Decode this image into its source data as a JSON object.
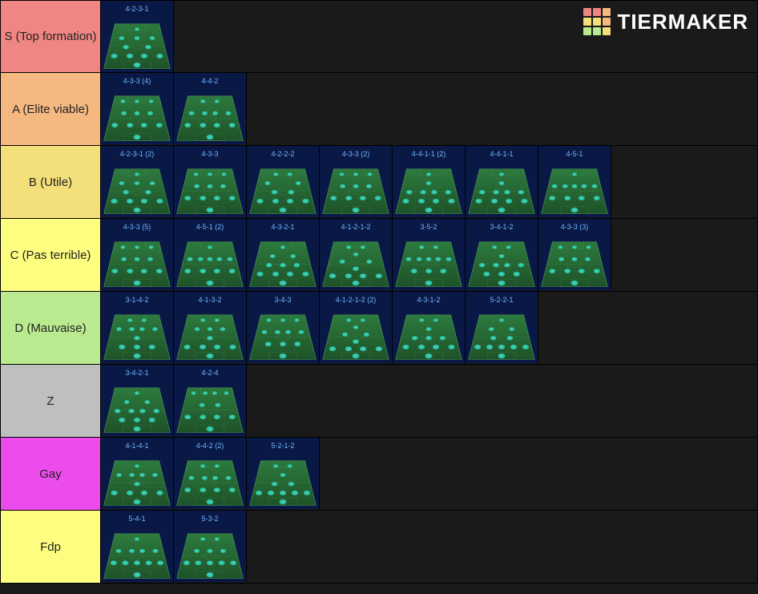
{
  "brand": {
    "text": "TIERMAKER"
  },
  "logo_colors": [
    "#ef8683",
    "#ef8683",
    "#f5b880",
    "#f4e07a",
    "#f4e07a",
    "#f5b880",
    "#b9ea8f",
    "#b9ea8f",
    "#f4e07a"
  ],
  "colors": {
    "background": "#1a1a1a",
    "card_bg": "#0a1845",
    "pitch_top": "#2d7a3e",
    "pitch_bottom": "#1e5228",
    "pitch_line": "#4a9958",
    "player_fill": "#3de8c8",
    "player_glow": "#2fb89e",
    "label_text": "#6fb8ff"
  },
  "tiers": [
    {
      "label": "S (Top formation)",
      "color": "#ef8683",
      "items": [
        {
          "name": "4-2-3-1",
          "rows": [
            [
              50
            ],
            [
              20,
              50,
              80
            ],
            [
              30,
              70
            ],
            [
              12,
              38,
              62,
              88
            ],
            [
              50
            ]
          ]
        }
      ]
    },
    {
      "label": "A (Elite viable)",
      "color": "#f5b880",
      "items": [
        {
          "name": "4-3-3 (4)",
          "rows": [
            [
              20,
              50,
              80
            ],
            [
              25,
              50,
              75
            ],
            [
              12,
              38,
              62,
              88
            ],
            [
              50
            ]
          ]
        },
        {
          "name": "4-4-2",
          "rows": [
            [
              35,
              65
            ],
            [
              15,
              40,
              60,
              85
            ],
            [
              12,
              38,
              62,
              88
            ],
            [
              50
            ]
          ]
        }
      ]
    },
    {
      "label": "B (Utile)",
      "color": "#f4e07a",
      "items": [
        {
          "name": "4-2-3-1 (2)",
          "rows": [
            [
              50
            ],
            [
              20,
              50,
              80
            ],
            [
              30,
              70
            ],
            [
              12,
              38,
              62,
              88
            ],
            [
              50
            ]
          ]
        },
        {
          "name": "4-3-3",
          "rows": [
            [
              20,
              50,
              80
            ],
            [
              25,
              50,
              75
            ],
            [
              12,
              38,
              62,
              88
            ],
            [
              50
            ]
          ]
        },
        {
          "name": "4-2-2-2",
          "rows": [
            [
              35,
              65
            ],
            [
              20,
              80
            ],
            [
              35,
              65
            ],
            [
              12,
              38,
              62,
              88
            ],
            [
              50
            ]
          ]
        },
        {
          "name": "4-3-3 (2)",
          "rows": [
            [
              20,
              50,
              80
            ],
            [
              25,
              50,
              75
            ],
            [
              12,
              38,
              62,
              88
            ],
            [
              50
            ]
          ]
        },
        {
          "name": "4-4-1-1 (2)",
          "rows": [
            [
              50
            ],
            [
              50
            ],
            [
              15,
              40,
              60,
              85
            ],
            [
              12,
              38,
              62,
              88
            ],
            [
              50
            ]
          ]
        },
        {
          "name": "4-4-1-1",
          "rows": [
            [
              50
            ],
            [
              50
            ],
            [
              15,
              40,
              60,
              85
            ],
            [
              12,
              38,
              62,
              88
            ],
            [
              50
            ]
          ]
        },
        {
          "name": "4-5-1",
          "rows": [
            [
              50
            ],
            [
              12,
              32,
              50,
              68,
              88
            ],
            [
              12,
              38,
              62,
              88
            ],
            [
              50
            ]
          ]
        }
      ]
    },
    {
      "label": "C (Pas terrible)",
      "color": "#fdfd80",
      "items": [
        {
          "name": "4-3-3 (5)",
          "rows": [
            [
              20,
              50,
              80
            ],
            [
              25,
              50,
              75
            ],
            [
              12,
              38,
              62,
              88
            ],
            [
              50
            ]
          ]
        },
        {
          "name": "4-5-1 (2)",
          "rows": [
            [
              50
            ],
            [
              12,
              32,
              50,
              68,
              88
            ],
            [
              12,
              38,
              62,
              88
            ],
            [
              50
            ]
          ]
        },
        {
          "name": "4-3-2-1",
          "rows": [
            [
              50
            ],
            [
              30,
              70
            ],
            [
              25,
              50,
              75
            ],
            [
              12,
              38,
              62,
              88
            ],
            [
              50
            ]
          ]
        },
        {
          "name": "4-1-2-1-2",
          "rows": [
            [
              35,
              65
            ],
            [
              50
            ],
            [
              25,
              75
            ],
            [
              50
            ],
            [
              12,
              38,
              62,
              88
            ],
            [
              50
            ]
          ]
        },
        {
          "name": "3-5-2",
          "rows": [
            [
              35,
              65
            ],
            [
              12,
              32,
              50,
              68,
              88
            ],
            [
              25,
              50,
              75
            ],
            [
              50
            ]
          ]
        },
        {
          "name": "3-4-1-2",
          "rows": [
            [
              35,
              65
            ],
            [
              50
            ],
            [
              15,
              40,
              60,
              85
            ],
            [
              25,
              50,
              75
            ],
            [
              50
            ]
          ]
        },
        {
          "name": "4-3-3 (3)",
          "rows": [
            [
              20,
              50,
              80
            ],
            [
              25,
              50,
              75
            ],
            [
              12,
              38,
              62,
              88
            ],
            [
              50
            ]
          ]
        }
      ]
    },
    {
      "label": "D (Mauvaise)",
      "color": "#b9ea8f",
      "items": [
        {
          "name": "3-1-4-2",
          "rows": [
            [
              35,
              65
            ],
            [
              15,
              40,
              60,
              85
            ],
            [
              50
            ],
            [
              25,
              50,
              75
            ],
            [
              50
            ]
          ]
        },
        {
          "name": "4-1-3-2",
          "rows": [
            [
              35,
              65
            ],
            [
              25,
              50,
              75
            ],
            [
              50
            ],
            [
              12,
              38,
              62,
              88
            ],
            [
              50
            ]
          ]
        },
        {
          "name": "3-4-3",
          "rows": [
            [
              20,
              50,
              80
            ],
            [
              15,
              40,
              60,
              85
            ],
            [
              25,
              50,
              75
            ],
            [
              50
            ]
          ]
        },
        {
          "name": "4-1-2-1-2 (2)",
          "rows": [
            [
              35,
              65
            ],
            [
              50
            ],
            [
              30,
              70
            ],
            [
              50
            ],
            [
              12,
              38,
              62,
              88
            ],
            [
              50
            ]
          ]
        },
        {
          "name": "4-3-1-2",
          "rows": [
            [
              35,
              65
            ],
            [
              50
            ],
            [
              25,
              50,
              75
            ],
            [
              12,
              38,
              62,
              88
            ],
            [
              50
            ]
          ]
        },
        {
          "name": "5-2-2-1",
          "rows": [
            [
              50
            ],
            [
              30,
              70
            ],
            [
              35,
              65
            ],
            [
              10,
              30,
              50,
              70,
              90
            ],
            [
              50
            ]
          ]
        }
      ]
    },
    {
      "label": "Z",
      "color": "#bfbfbf",
      "items": [
        {
          "name": "3-4-2-1",
          "rows": [
            [
              50
            ],
            [
              30,
              70
            ],
            [
              15,
              40,
              60,
              85
            ],
            [
              25,
              50,
              75
            ],
            [
              50
            ]
          ]
        },
        {
          "name": "4-2-4",
          "rows": [
            [
              15,
              40,
              60,
              85
            ],
            [
              35,
              65
            ],
            [
              12,
              38,
              62,
              88
            ],
            [
              50
            ]
          ]
        }
      ]
    },
    {
      "label": "Gay",
      "color": "#ec4cec",
      "items": [
        {
          "name": "4-1-4-1",
          "rows": [
            [
              50
            ],
            [
              15,
              40,
              60,
              85
            ],
            [
              50
            ],
            [
              12,
              38,
              62,
              88
            ],
            [
              50
            ]
          ]
        },
        {
          "name": "4-4-2 (2)",
          "rows": [
            [
              35,
              65
            ],
            [
              15,
              40,
              60,
              85
            ],
            [
              12,
              38,
              62,
              88
            ],
            [
              50
            ]
          ]
        },
        {
          "name": "5-2-1-2",
          "rows": [
            [
              35,
              65
            ],
            [
              50
            ],
            [
              35,
              65
            ],
            [
              10,
              30,
              50,
              70,
              90
            ],
            [
              50
            ]
          ]
        }
      ]
    },
    {
      "label": "Fdp",
      "color": "#fdfd80",
      "items": [
        {
          "name": "5-4-1",
          "rows": [
            [
              50
            ],
            [
              15,
              40,
              60,
              85
            ],
            [
              10,
              30,
              50,
              70,
              90
            ],
            [
              50
            ]
          ]
        },
        {
          "name": "5-3-2",
          "rows": [
            [
              35,
              65
            ],
            [
              25,
              50,
              75
            ],
            [
              10,
              30,
              50,
              70,
              90
            ],
            [
              50
            ]
          ]
        }
      ]
    }
  ]
}
